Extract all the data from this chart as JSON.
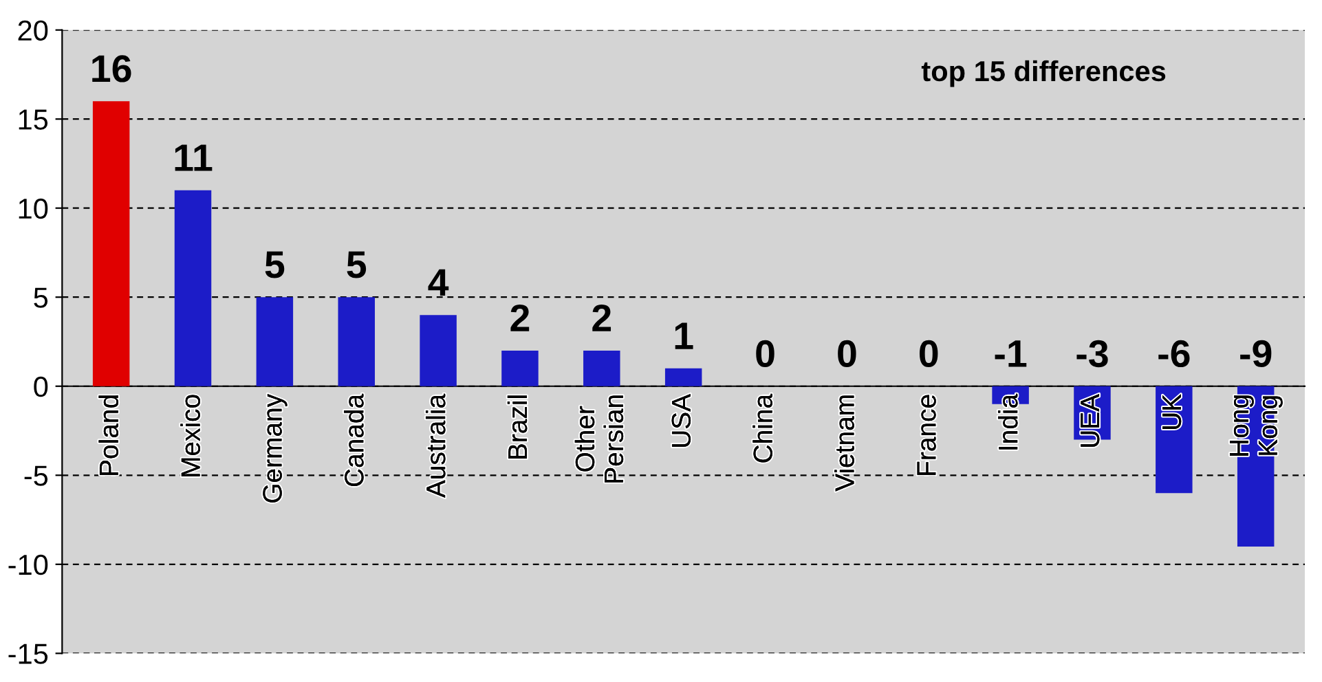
{
  "chart_data": {
    "type": "bar",
    "title": "top 15 differences",
    "categories": [
      "Poland",
      "Mexico",
      "Germany",
      "Canada",
      "Australia",
      "Brazil",
      "Other\nPersian",
      "USA",
      "China",
      "Vietnam",
      "France",
      "India",
      "UEA",
      "UK",
      "Hong\nKong"
    ],
    "values": [
      16,
      11,
      5,
      5,
      4,
      2,
      2,
      1,
      0,
      0,
      0,
      -1,
      -3,
      -6,
      -9
    ],
    "colors": [
      "#e00000",
      "#1c1cc8",
      "#1c1cc8",
      "#1c1cc8",
      "#1c1cc8",
      "#1c1cc8",
      "#1c1cc8",
      "#1c1cc8",
      "#1c1cc8",
      "#1c1cc8",
      "#1c1cc8",
      "#1c1cc8",
      "#1c1cc8",
      "#1c1cc8",
      "#1c1cc8"
    ],
    "ylim": [
      -15,
      20
    ],
    "yticks": [
      -15,
      -10,
      -5,
      0,
      5,
      10,
      15,
      20
    ],
    "grid": "y",
    "data_labels": true
  }
}
